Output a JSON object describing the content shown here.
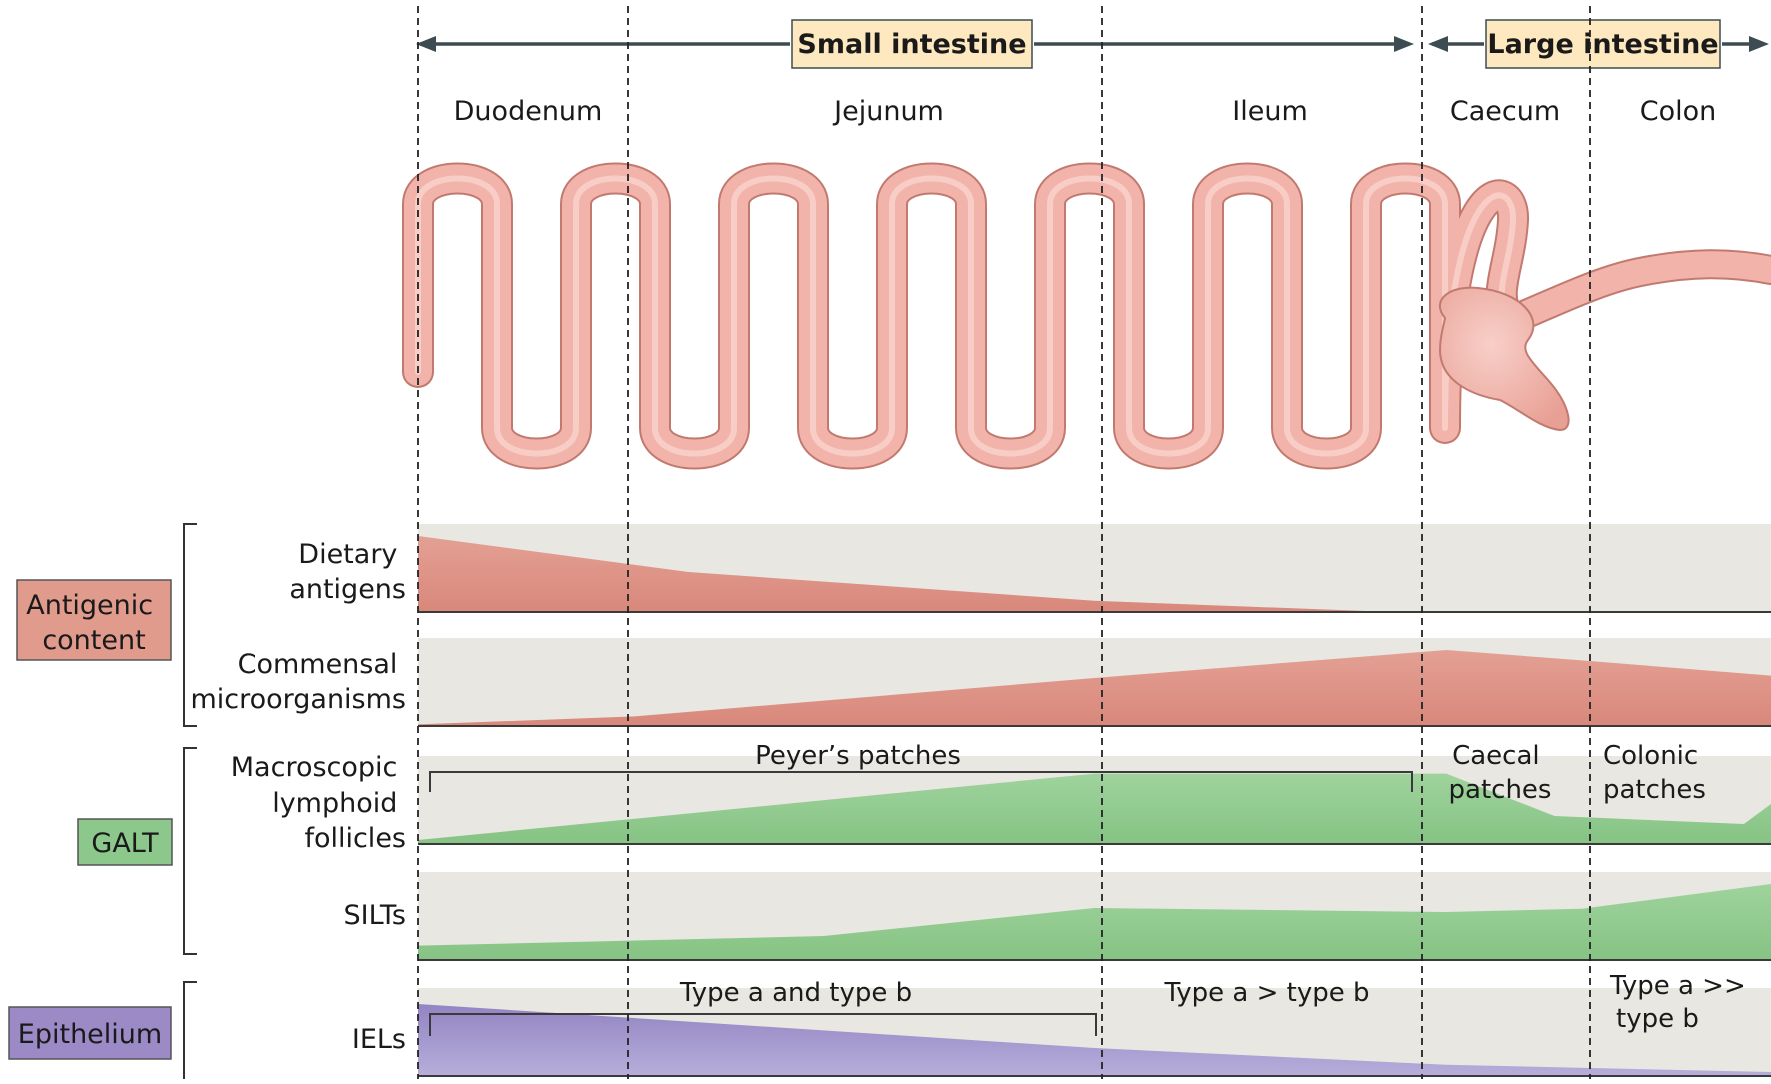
{
  "header": {
    "small_intestine": "Small intestine",
    "large_intestine": "Large intestine"
  },
  "segments": [
    {
      "label": "Duodenum"
    },
    {
      "label": "Jejunum"
    },
    {
      "label": "Ileum"
    },
    {
      "label": "Caecum"
    },
    {
      "label": "Colon"
    }
  ],
  "categories": {
    "antigenic": {
      "lines": [
        "Antigenic",
        "content"
      ],
      "color": "#e09b8d"
    },
    "galt": {
      "lines": [
        "GALT"
      ],
      "color": "#8cc78c"
    },
    "epithelium": {
      "lines": [
        "Epithelium"
      ],
      "color": "#9b8ac6"
    }
  },
  "rows": {
    "dietary": {
      "label_lines": [
        "Dietary",
        "antigens"
      ],
      "profile": [
        [
          0,
          0.95
        ],
        [
          0.2,
          0.5
        ],
        [
          0.5,
          0.14
        ],
        [
          0.72,
          0
        ],
        [
          1,
          0
        ]
      ]
    },
    "commensal": {
      "label_lines": [
        "Commensal",
        "microorganisms"
      ],
      "profile": [
        [
          0,
          0.02
        ],
        [
          0.16,
          0.12
        ],
        [
          0.5,
          0.6
        ],
        [
          0.76,
          0.95
        ],
        [
          0.86,
          0.82
        ],
        [
          1,
          0.63
        ]
      ]
    },
    "lymphoid": {
      "label_lines": [
        "Macroscopic",
        "lymphoid",
        "follicles"
      ],
      "profile": [
        [
          0,
          0.05
        ],
        [
          0.5,
          0.88
        ],
        [
          0.76,
          0.88
        ],
        [
          0.84,
          0.35
        ],
        [
          0.98,
          0.25
        ],
        [
          1,
          0.5
        ]
      ],
      "annotations": {
        "peyers": "Peyer’s patches",
        "caecal_lines": [
          "Caecal",
          "patches"
        ],
        "colonic_lines": [
          "Colonic",
          "patches"
        ]
      }
    },
    "silts": {
      "label_lines": [
        "SILTs"
      ],
      "profile": [
        [
          0,
          0.18
        ],
        [
          0.3,
          0.3
        ],
        [
          0.5,
          0.65
        ],
        [
          0.76,
          0.6
        ],
        [
          0.86,
          0.64
        ],
        [
          1,
          0.95
        ]
      ]
    },
    "iels": {
      "label_lines": [
        "IELs"
      ],
      "profile": [
        [
          0,
          0.9
        ],
        [
          0.5,
          0.35
        ],
        [
          0.76,
          0.14
        ],
        [
          1,
          0.05
        ]
      ],
      "annotations": {
        "type_ab": "Type a and type b",
        "type_a_gt_b": "Type a > type b",
        "type_a_ggt_b_lines": [
          "Type a >>",
          "type b"
        ]
      }
    }
  },
  "colors": {
    "panel_bg": "#e8e7e2",
    "antigen_fill": "#df9487",
    "galt_fill": "#8ecb8c",
    "epi_fill": "#a699cf",
    "intestine_fill": "#f2b4aa",
    "intestine_outline": "#c27a70",
    "header_box": "#fde8bf",
    "arrow": "#3d4b52"
  }
}
